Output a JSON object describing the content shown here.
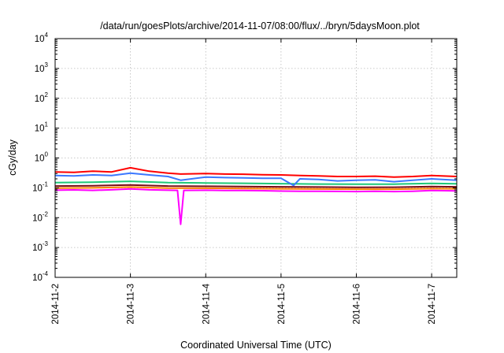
{
  "chart_data": {
    "type": "line",
    "title": "/data/run/goesPlots/archive/2014-11-07/08:00/flux/../bryn/5daysMoon.plot",
    "xlabel": "Coordinated Universal Time (UTC)",
    "ylabel": "cGy/day",
    "yscale": "log",
    "ylim": [
      0.0001,
      10000
    ],
    "xlim": [
      "2014-11-02T00:00",
      "2014-11-07T08:00"
    ],
    "grid": true,
    "legend": "none",
    "x_ticks": [
      "2014-11-2",
      "2014-11-3",
      "2014-11-4",
      "2014-11-5",
      "2014-11-6",
      "2014-11-7"
    ],
    "y_ticks": [
      {
        "value": 0.0001,
        "base": "10",
        "exp": "-4"
      },
      {
        "value": 0.001,
        "base": "10",
        "exp": "-3"
      },
      {
        "value": 0.01,
        "base": "10",
        "exp": "-2"
      },
      {
        "value": 0.1,
        "base": "10",
        "exp": "-1"
      },
      {
        "value": 1,
        "base": "10",
        "exp": "0"
      },
      {
        "value": 10,
        "base": "10",
        "exp": "1"
      },
      {
        "value": 100,
        "base": "10",
        "exp": "2"
      },
      {
        "value": 1000,
        "base": "10",
        "exp": "3"
      },
      {
        "value": 10000,
        "base": "10",
        "exp": "4"
      }
    ],
    "series": [
      {
        "color": "#ff00ff",
        "points": [
          [
            "2014-11-02T00:00",
            0.083
          ],
          [
            "2014-11-02T06:00",
            0.085
          ],
          [
            "2014-11-02T12:00",
            0.082
          ],
          [
            "2014-11-02T18:00",
            0.086
          ],
          [
            "2014-11-03T00:00",
            0.092
          ],
          [
            "2014-11-03T06:00",
            0.086
          ],
          [
            "2014-11-03T12:00",
            0.083
          ],
          [
            "2014-11-03T15:00",
            0.082
          ],
          [
            "2014-11-03T16:00",
            0.006
          ],
          [
            "2014-11-03T17:00",
            0.082
          ],
          [
            "2014-11-04T00:00",
            0.083
          ],
          [
            "2014-11-04T06:00",
            0.081
          ],
          [
            "2014-11-04T12:00",
            0.081
          ],
          [
            "2014-11-04T18:00",
            0.08
          ],
          [
            "2014-11-05T00:00",
            0.078
          ],
          [
            "2014-11-05T06:00",
            0.077
          ],
          [
            "2014-11-05T12:00",
            0.077
          ],
          [
            "2014-11-05T18:00",
            0.076
          ],
          [
            "2014-11-06T00:00",
            0.075
          ],
          [
            "2014-11-06T06:00",
            0.077
          ],
          [
            "2014-11-06T12:00",
            0.075
          ],
          [
            "2014-11-06T18:00",
            0.077
          ],
          [
            "2014-11-07T00:00",
            0.081
          ],
          [
            "2014-11-07T08:00",
            0.079
          ]
        ]
      },
      {
        "color": "#ff8000",
        "points": [
          [
            "2014-11-02T00:00",
            0.098
          ],
          [
            "2014-11-02T12:00",
            0.1
          ],
          [
            "2014-11-03T00:00",
            0.106
          ],
          [
            "2014-11-03T12:00",
            0.098
          ],
          [
            "2014-11-04T00:00",
            0.097
          ],
          [
            "2014-11-04T12:00",
            0.095
          ],
          [
            "2014-11-05T00:00",
            0.093
          ],
          [
            "2014-11-05T12:00",
            0.091
          ],
          [
            "2014-11-06T00:00",
            0.09
          ],
          [
            "2014-11-06T12:00",
            0.09
          ],
          [
            "2014-11-07T00:00",
            0.094
          ],
          [
            "2014-11-07T08:00",
            0.093
          ]
        ]
      },
      {
        "color": "#7a0a14",
        "points": [
          [
            "2014-11-02T00:00",
            0.115
          ],
          [
            "2014-11-02T12:00",
            0.118
          ],
          [
            "2014-11-03T00:00",
            0.125
          ],
          [
            "2014-11-03T12:00",
            0.115
          ],
          [
            "2014-11-04T00:00",
            0.113
          ],
          [
            "2014-11-04T12:00",
            0.111
          ],
          [
            "2014-11-05T00:00",
            0.108
          ],
          [
            "2014-11-05T12:00",
            0.106
          ],
          [
            "2014-11-06T00:00",
            0.104
          ],
          [
            "2014-11-06T12:00",
            0.105
          ],
          [
            "2014-11-07T00:00",
            0.11
          ],
          [
            "2014-11-07T08:00",
            0.108
          ]
        ]
      },
      {
        "color": "#1ec878",
        "points": [
          [
            "2014-11-02T00:00",
            0.15
          ],
          [
            "2014-11-02T12:00",
            0.155
          ],
          [
            "2014-11-03T00:00",
            0.165
          ],
          [
            "2014-11-03T12:00",
            0.15
          ],
          [
            "2014-11-04T00:00",
            0.146
          ],
          [
            "2014-11-04T12:00",
            0.142
          ],
          [
            "2014-11-05T00:00",
            0.138
          ],
          [
            "2014-11-05T12:00",
            0.134
          ],
          [
            "2014-11-06T00:00",
            0.132
          ],
          [
            "2014-11-06T12:00",
            0.133
          ],
          [
            "2014-11-07T00:00",
            0.14
          ],
          [
            "2014-11-07T08:00",
            0.137
          ]
        ]
      },
      {
        "color": "#3c78ff",
        "points": [
          [
            "2014-11-02T00:00",
            0.26
          ],
          [
            "2014-11-02T06:00",
            0.25
          ],
          [
            "2014-11-02T12:00",
            0.27
          ],
          [
            "2014-11-02T18:00",
            0.26
          ],
          [
            "2014-11-03T00:00",
            0.31
          ],
          [
            "2014-11-03T06:00",
            0.27
          ],
          [
            "2014-11-03T12:00",
            0.24
          ],
          [
            "2014-11-03T16:00",
            0.18
          ],
          [
            "2014-11-04T00:00",
            0.23
          ],
          [
            "2014-11-04T06:00",
            0.22
          ],
          [
            "2014-11-04T12:00",
            0.215
          ],
          [
            "2014-11-04T18:00",
            0.21
          ],
          [
            "2014-11-05T00:00",
            0.21
          ],
          [
            "2014-11-05T04:00",
            0.12
          ],
          [
            "2014-11-05T06:00",
            0.2
          ],
          [
            "2014-11-05T12:00",
            0.19
          ],
          [
            "2014-11-05T18:00",
            0.17
          ],
          [
            "2014-11-06T00:00",
            0.18
          ],
          [
            "2014-11-06T06:00",
            0.185
          ],
          [
            "2014-11-06T12:00",
            0.16
          ],
          [
            "2014-11-06T18:00",
            0.18
          ],
          [
            "2014-11-07T00:00",
            0.2
          ],
          [
            "2014-11-07T08:00",
            0.18
          ]
        ]
      },
      {
        "color": "#ff0000",
        "points": [
          [
            "2014-11-02T00:00",
            0.34
          ],
          [
            "2014-11-02T06:00",
            0.33
          ],
          [
            "2014-11-02T12:00",
            0.36
          ],
          [
            "2014-11-02T18:00",
            0.34
          ],
          [
            "2014-11-03T00:00",
            0.47
          ],
          [
            "2014-11-03T06:00",
            0.36
          ],
          [
            "2014-11-03T12:00",
            0.31
          ],
          [
            "2014-11-03T16:00",
            0.29
          ],
          [
            "2014-11-04T00:00",
            0.3
          ],
          [
            "2014-11-04T06:00",
            0.29
          ],
          [
            "2014-11-04T12:00",
            0.285
          ],
          [
            "2014-11-04T18:00",
            0.275
          ],
          [
            "2014-11-05T00:00",
            0.27
          ],
          [
            "2014-11-05T06:00",
            0.26
          ],
          [
            "2014-11-05T12:00",
            0.25
          ],
          [
            "2014-11-05T18:00",
            0.24
          ],
          [
            "2014-11-06T00:00",
            0.24
          ],
          [
            "2014-11-06T06:00",
            0.245
          ],
          [
            "2014-11-06T12:00",
            0.23
          ],
          [
            "2014-11-06T18:00",
            0.24
          ],
          [
            "2014-11-07T00:00",
            0.26
          ],
          [
            "2014-11-07T08:00",
            0.24
          ]
        ]
      }
    ]
  }
}
